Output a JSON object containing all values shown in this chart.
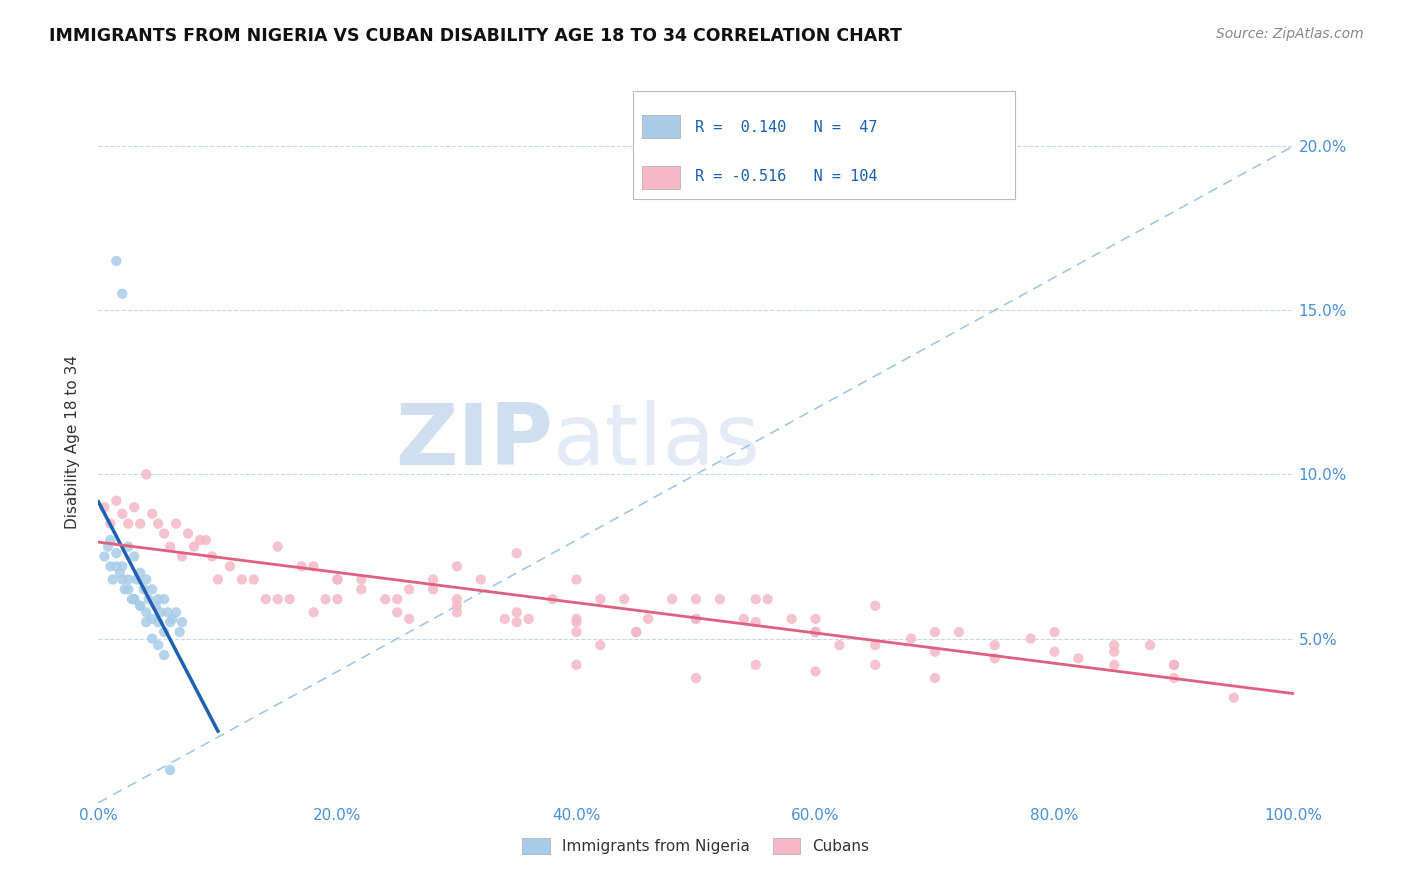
{
  "title": "IMMIGRANTS FROM NIGERIA VS CUBAN DISABILITY AGE 18 TO 34 CORRELATION CHART",
  "source": "Source: ZipAtlas.com",
  "ylabel": "Disability Age 18 to 34",
  "xlim": [
    0.0,
    1.0
  ],
  "ylim": [
    0.0,
    0.22
  ],
  "x_ticks": [
    0.0,
    0.2,
    0.4,
    0.6,
    0.8,
    1.0
  ],
  "x_tick_labels": [
    "0.0%",
    "20.0%",
    "40.0%",
    "60.0%",
    "80.0%",
    "100.0%"
  ],
  "y_ticks": [
    0.0,
    0.05,
    0.1,
    0.15,
    0.2
  ],
  "y_tick_labels_right": [
    "",
    "5.0%",
    "10.0%",
    "15.0%",
    "20.0%"
  ],
  "nigeria_R": 0.14,
  "nigeria_N": 47,
  "cuba_R": -0.516,
  "cuba_N": 104,
  "nigeria_color": "#a8cce8",
  "cuba_color": "#f4b8c8",
  "nigeria_line_color": "#2060b0",
  "cuba_line_color": "#e06080",
  "diag_line_color": "#90b8e0",
  "background_color": "#ffffff",
  "grid_color": "#c8d8e8",
  "watermark_color": "#d0dff0",
  "legend_label_nigeria": "Immigrants from Nigeria",
  "legend_label_cuba": "Cubans",
  "nigeria_scatter_x": [
    0.005,
    0.008,
    0.01,
    0.012,
    0.015,
    0.015,
    0.018,
    0.02,
    0.02,
    0.022,
    0.025,
    0.025,
    0.028,
    0.03,
    0.03,
    0.032,
    0.035,
    0.035,
    0.038,
    0.04,
    0.04,
    0.042,
    0.045,
    0.045,
    0.048,
    0.05,
    0.05,
    0.052,
    0.055,
    0.055,
    0.058,
    0.06,
    0.062,
    0.065,
    0.068,
    0.07,
    0.01,
    0.015,
    0.02,
    0.025,
    0.03,
    0.035,
    0.04,
    0.045,
    0.05,
    0.055,
    0.06
  ],
  "nigeria_scatter_y": [
    0.075,
    0.078,
    0.072,
    0.068,
    0.165,
    0.072,
    0.07,
    0.155,
    0.068,
    0.065,
    0.078,
    0.065,
    0.062,
    0.075,
    0.062,
    0.068,
    0.07,
    0.06,
    0.065,
    0.068,
    0.058,
    0.062,
    0.065,
    0.056,
    0.06,
    0.062,
    0.055,
    0.058,
    0.062,
    0.052,
    0.058,
    0.055,
    0.056,
    0.058,
    0.052,
    0.055,
    0.08,
    0.076,
    0.072,
    0.068,
    0.062,
    0.06,
    0.055,
    0.05,
    0.048,
    0.045,
    0.01
  ],
  "cuba_scatter_x": [
    0.005,
    0.01,
    0.015,
    0.02,
    0.025,
    0.03,
    0.035,
    0.04,
    0.045,
    0.05,
    0.055,
    0.06,
    0.065,
    0.07,
    0.075,
    0.08,
    0.085,
    0.09,
    0.095,
    0.1,
    0.11,
    0.12,
    0.13,
    0.14,
    0.15,
    0.15,
    0.16,
    0.17,
    0.18,
    0.19,
    0.2,
    0.2,
    0.22,
    0.24,
    0.25,
    0.26,
    0.28,
    0.28,
    0.3,
    0.3,
    0.32,
    0.34,
    0.35,
    0.36,
    0.38,
    0.4,
    0.4,
    0.42,
    0.44,
    0.46,
    0.48,
    0.5,
    0.5,
    0.52,
    0.54,
    0.55,
    0.56,
    0.58,
    0.6,
    0.6,
    0.62,
    0.65,
    0.65,
    0.68,
    0.7,
    0.7,
    0.72,
    0.75,
    0.75,
    0.78,
    0.8,
    0.8,
    0.82,
    0.85,
    0.85,
    0.88,
    0.9,
    0.9,
    0.35,
    0.4,
    0.45,
    0.5,
    0.55,
    0.6,
    0.2,
    0.25,
    0.3,
    0.35,
    0.4,
    0.42,
    0.45,
    0.18,
    0.22,
    0.26,
    0.3,
    0.55,
    0.6,
    0.65,
    0.7,
    0.4,
    0.5,
    0.85,
    0.9,
    0.95
  ],
  "cuba_scatter_y": [
    0.09,
    0.085,
    0.092,
    0.088,
    0.085,
    0.09,
    0.085,
    0.1,
    0.088,
    0.085,
    0.082,
    0.078,
    0.085,
    0.075,
    0.082,
    0.078,
    0.08,
    0.08,
    0.075,
    0.068,
    0.072,
    0.068,
    0.068,
    0.062,
    0.078,
    0.062,
    0.062,
    0.072,
    0.058,
    0.062,
    0.062,
    0.068,
    0.065,
    0.062,
    0.058,
    0.056,
    0.065,
    0.068,
    0.072,
    0.062,
    0.068,
    0.056,
    0.058,
    0.056,
    0.062,
    0.056,
    0.068,
    0.062,
    0.062,
    0.056,
    0.062,
    0.056,
    0.062,
    0.062,
    0.056,
    0.062,
    0.062,
    0.056,
    0.052,
    0.056,
    0.048,
    0.06,
    0.048,
    0.05,
    0.052,
    0.046,
    0.052,
    0.048,
    0.044,
    0.05,
    0.046,
    0.052,
    0.044,
    0.048,
    0.042,
    0.048,
    0.042,
    0.038,
    0.076,
    0.055,
    0.052,
    0.056,
    0.055,
    0.052,
    0.068,
    0.062,
    0.058,
    0.055,
    0.052,
    0.048,
    0.052,
    0.072,
    0.068,
    0.065,
    0.06,
    0.042,
    0.04,
    0.042,
    0.038,
    0.042,
    0.038,
    0.046,
    0.042,
    0.032
  ]
}
